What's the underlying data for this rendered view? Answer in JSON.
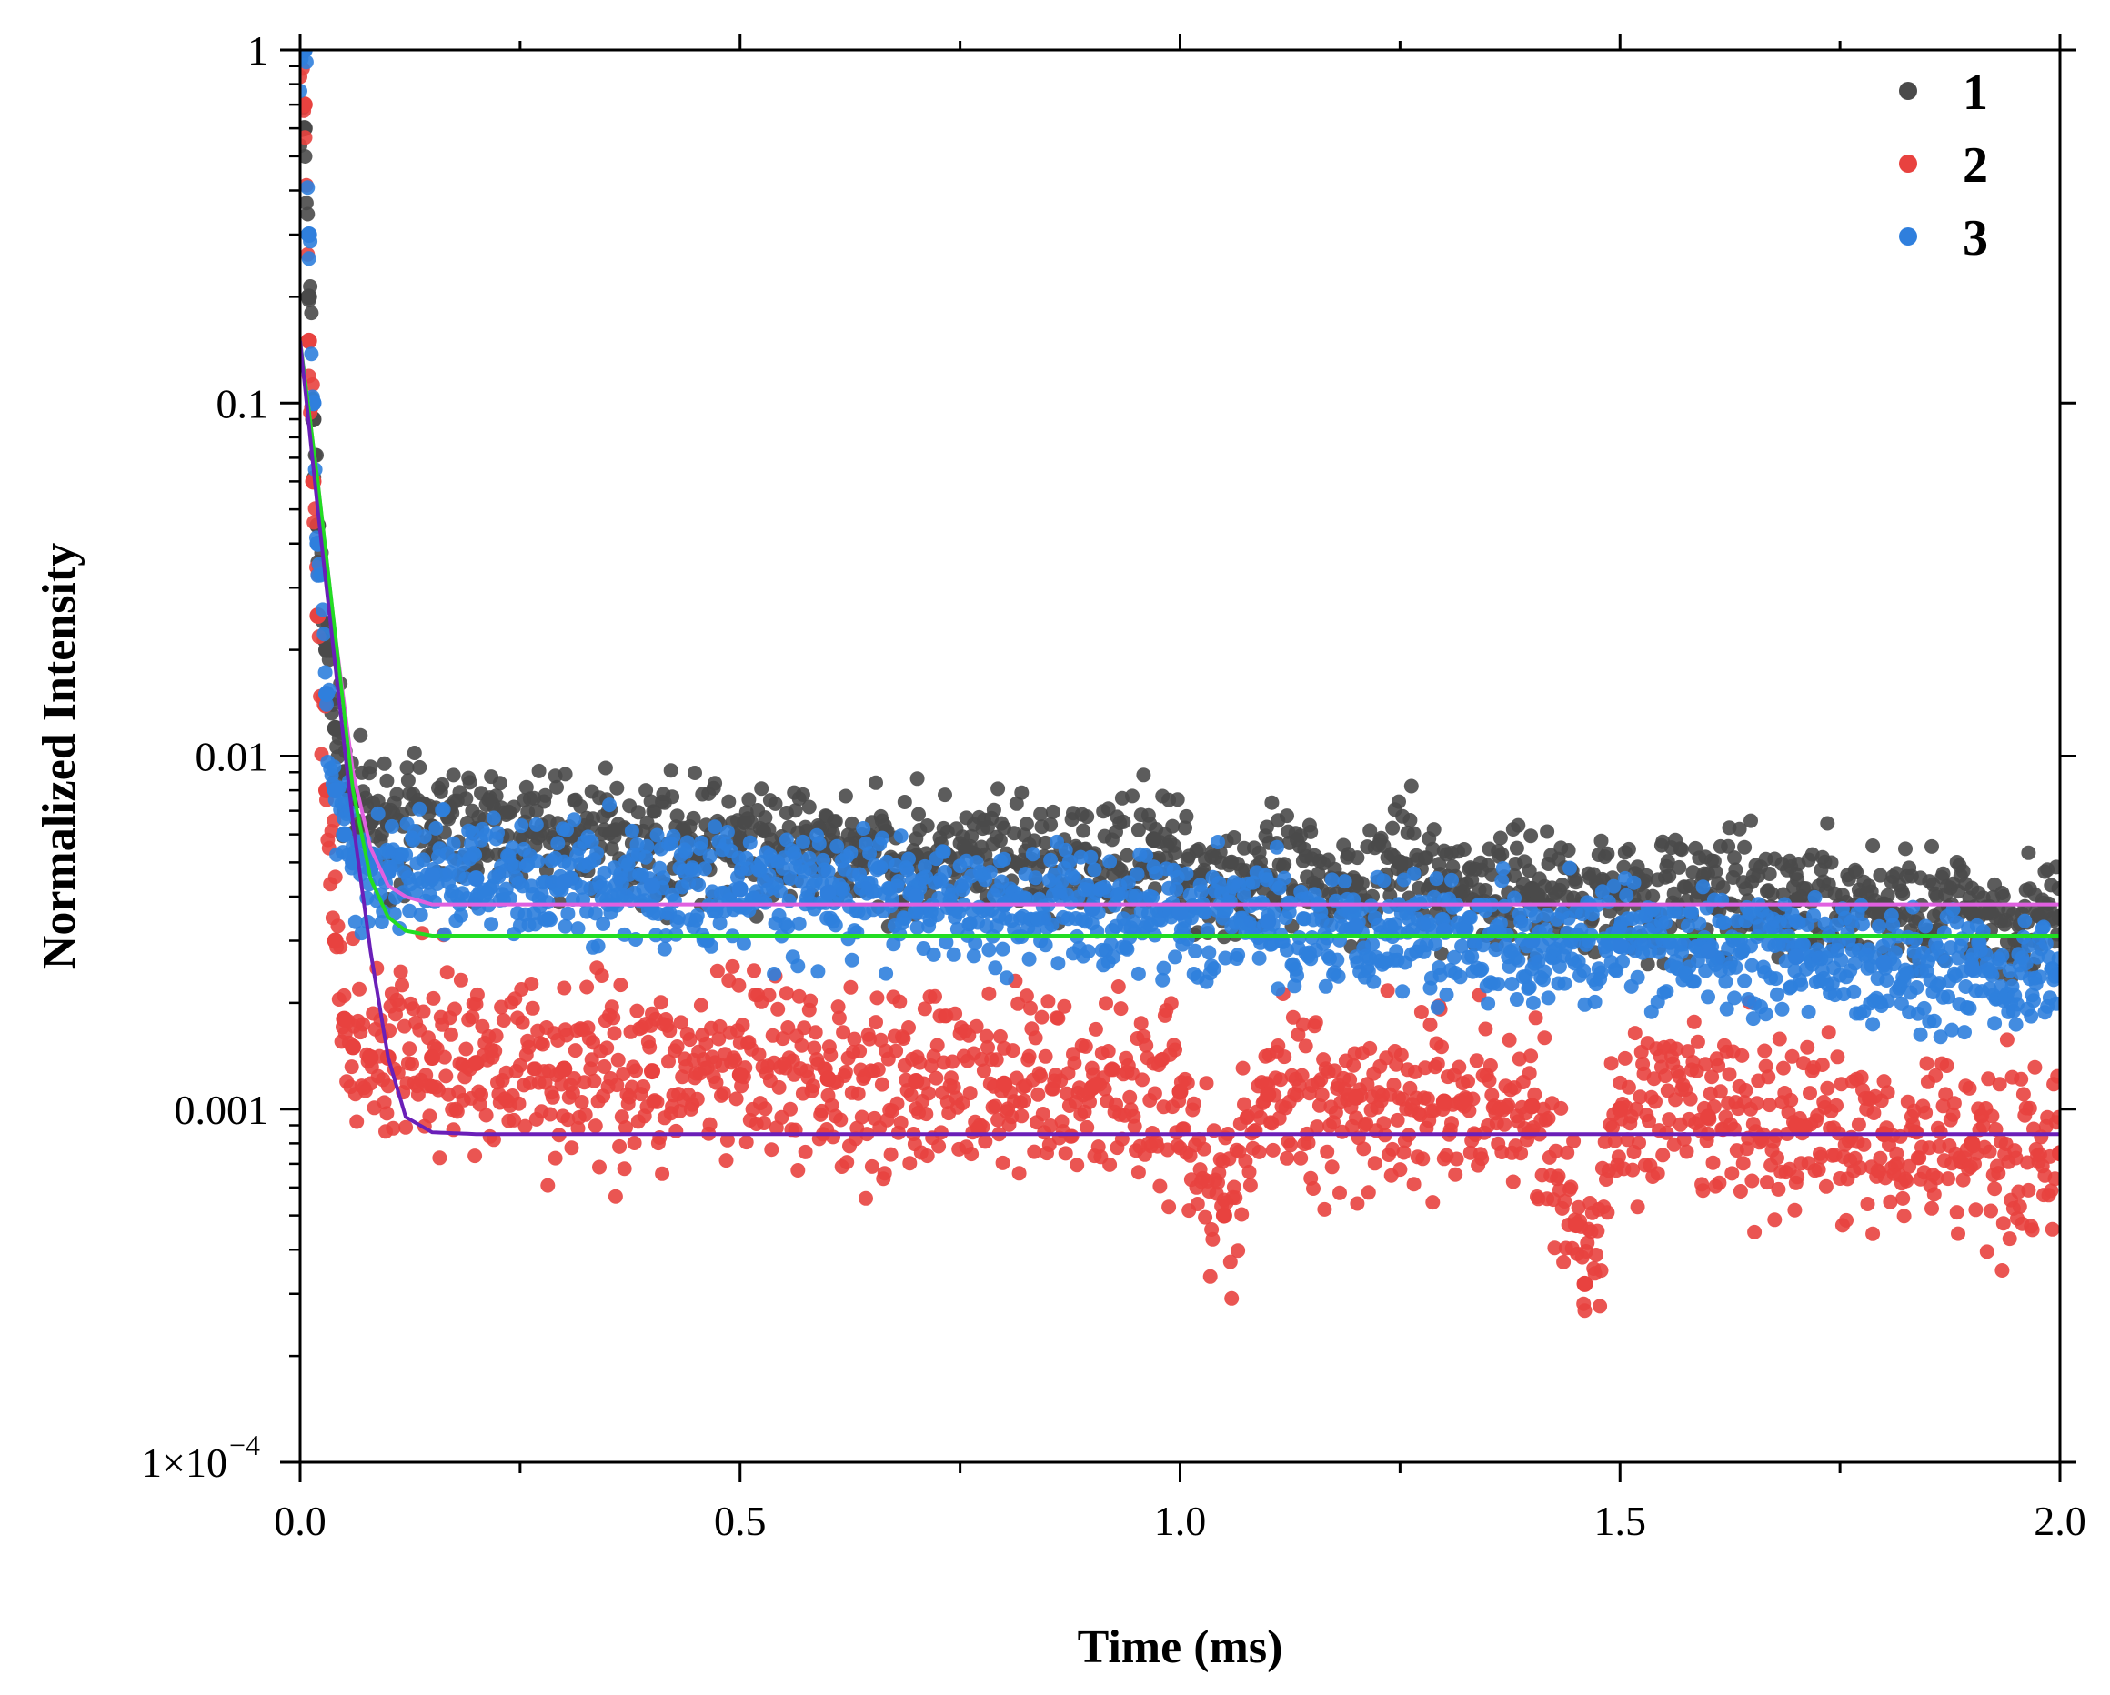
{
  "chart_data": {
    "type": "scatter",
    "title": "",
    "xlabel": "Time (ms)",
    "ylabel": "Normalized Intensity",
    "xlim": [
      0,
      2.0
    ],
    "ylim": [
      0.0001,
      1
    ],
    "yscale": "log",
    "x_ticks": [
      {
        "value": 0.0,
        "label": "0.0"
      },
      {
        "value": 0.5,
        "label": "0.5"
      },
      {
        "value": 1.0,
        "label": "1.0"
      },
      {
        "value": 1.5,
        "label": "1.5"
      },
      {
        "value": 2.0,
        "label": "2.0"
      }
    ],
    "x_minor_ticks": [
      0.25,
      0.75,
      1.25,
      1.75
    ],
    "y_ticks": [
      {
        "value": 1,
        "label": "1"
      },
      {
        "value": 0.1,
        "label": "0.1"
      },
      {
        "value": 0.01,
        "label": "0.01"
      },
      {
        "value": 0.001,
        "label": "0.001"
      }
    ],
    "y_min_label": {
      "value": 0.0001,
      "mantissa": "1×10",
      "exponent": "−4"
    },
    "grid": false,
    "legend_position": "top-right",
    "series": [
      {
        "name": "1",
        "kind": "scatter",
        "color": "#4a4a4a",
        "x": [
          0.005,
          0.01,
          0.015,
          0.02,
          0.03,
          0.04,
          0.05,
          0.06,
          0.08,
          0.1,
          0.15,
          0.2,
          0.3,
          0.4,
          0.5,
          0.6,
          0.7,
          0.8,
          0.9,
          0.97,
          1.0,
          1.1,
          1.2,
          1.25,
          1.3,
          1.4,
          1.5,
          1.6,
          1.7,
          1.8,
          1.9,
          2.0
        ],
        "y": [
          0.6,
          0.2,
          0.09,
          0.045,
          0.02,
          0.012,
          0.009,
          0.0075,
          0.0065,
          0.0064,
          0.0063,
          0.0062,
          0.006,
          0.0058,
          0.0056,
          0.0054,
          0.0052,
          0.005,
          0.0048,
          0.0058,
          0.0047,
          0.0045,
          0.0044,
          0.005,
          0.0043,
          0.0042,
          0.0041,
          0.004,
          0.0039,
          0.0038,
          0.0036,
          0.0035
        ]
      },
      {
        "name": "2",
        "kind": "scatter",
        "color": "#e8423f",
        "x": [
          0.005,
          0.01,
          0.015,
          0.02,
          0.03,
          0.04,
          0.05,
          0.06,
          0.08,
          0.1,
          0.15,
          0.2,
          0.3,
          0.4,
          0.5,
          0.6,
          0.7,
          0.8,
          0.9,
          1.0,
          1.05,
          1.1,
          1.2,
          1.3,
          1.4,
          1.45,
          1.46,
          1.5,
          1.6,
          1.7,
          1.8,
          1.9,
          2.0
        ],
        "y": [
          0.7,
          0.15,
          0.06,
          0.025,
          0.008,
          0.003,
          0.0018,
          0.0015,
          0.0014,
          0.0014,
          0.0014,
          0.00135,
          0.0013,
          0.00128,
          0.00125,
          0.00122,
          0.0012,
          0.00118,
          0.00115,
          0.00112,
          0.0005,
          0.0011,
          0.00108,
          0.00105,
          0.00102,
          0.00047,
          0.00032,
          0.001,
          0.00095,
          0.0009,
          0.00085,
          0.0008,
          0.00075
        ]
      },
      {
        "name": "3",
        "kind": "scatter",
        "color": "#2f7fdd",
        "x": [
          0.005,
          0.01,
          0.015,
          0.02,
          0.03,
          0.04,
          0.05,
          0.06,
          0.08,
          0.1,
          0.15,
          0.2,
          0.3,
          0.4,
          0.5,
          0.6,
          0.7,
          0.8,
          0.9,
          1.0,
          1.1,
          1.2,
          1.3,
          1.4,
          1.5,
          1.6,
          1.7,
          1.8,
          1.9,
          2.0
        ],
        "y": [
          1.0,
          0.3,
          0.1,
          0.04,
          0.015,
          0.008,
          0.006,
          0.005,
          0.0048,
          0.0047,
          0.0046,
          0.0045,
          0.0044,
          0.0043,
          0.0042,
          0.0041,
          0.004,
          0.0038,
          0.0037,
          0.0036,
          0.0034,
          0.0033,
          0.0032,
          0.003,
          0.0029,
          0.0028,
          0.0027,
          0.0026,
          0.0025,
          0.0024
        ]
      },
      {
        "name": "fit-magenta",
        "kind": "line",
        "color": "#e060e0",
        "x": [
          0.0,
          0.02,
          0.04,
          0.06,
          0.08,
          0.1,
          0.12,
          0.15,
          0.2,
          0.5,
          1.0,
          1.5,
          2.0
        ],
        "y": [
          0.15,
          0.06,
          0.022,
          0.009,
          0.0055,
          0.0043,
          0.004,
          0.0038,
          0.0038,
          0.0038,
          0.0038,
          0.0038,
          0.0038
        ]
      },
      {
        "name": "fit-green",
        "kind": "line",
        "color": "#22dd22",
        "x": [
          0.0,
          0.02,
          0.04,
          0.06,
          0.08,
          0.1,
          0.12,
          0.15,
          0.2,
          0.5,
          1.0,
          1.5,
          2.0
        ],
        "y": [
          0.15,
          0.06,
          0.022,
          0.008,
          0.0045,
          0.0035,
          0.0032,
          0.0031,
          0.0031,
          0.0031,
          0.0031,
          0.0031,
          0.0031
        ]
      },
      {
        "name": "fit-purple",
        "kind": "line",
        "color": "#6a1fb8",
        "x": [
          0.0,
          0.02,
          0.04,
          0.06,
          0.08,
          0.1,
          0.12,
          0.15,
          0.2,
          0.5,
          1.0,
          1.5,
          2.0
        ],
        "y": [
          0.15,
          0.05,
          0.018,
          0.0065,
          0.0028,
          0.0014,
          0.00095,
          0.00086,
          0.00085,
          0.00085,
          0.00085,
          0.00085,
          0.00085
        ]
      }
    ],
    "legend": [
      {
        "label": "1",
        "color": "#4a4a4a"
      },
      {
        "label": "2",
        "color": "#e8423f"
      },
      {
        "label": "3",
        "color": "#2f7fdd"
      }
    ]
  }
}
